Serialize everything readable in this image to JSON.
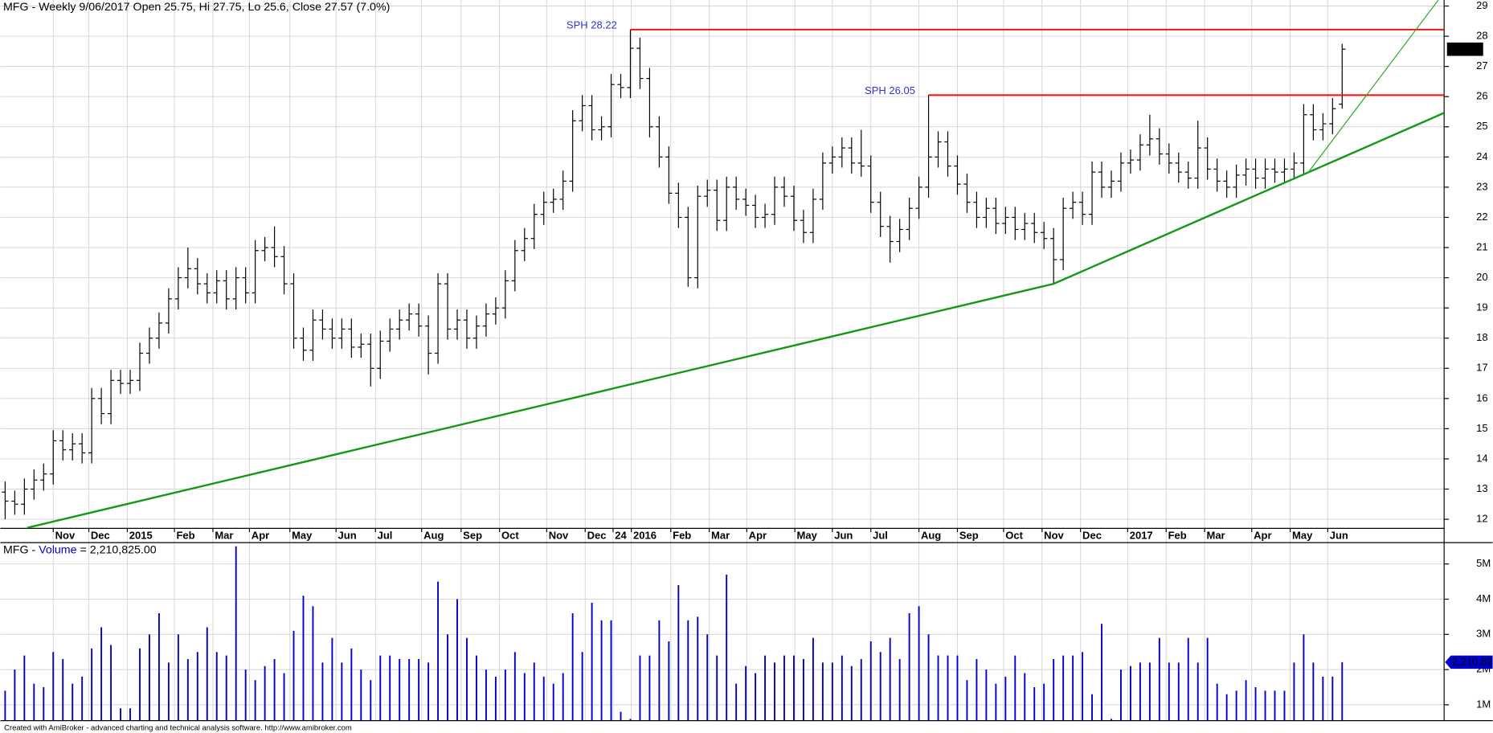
{
  "chart_data": [
    {
      "type": "ohlc",
      "title": "MFG - Weekly 9/06/2017 Open 25.75, Hi 27.75, Lo 25.6, Close 27.57 (7.0%)",
      "color": "#000000",
      "grid": true,
      "open": [
        12.9,
        12.6,
        12.5,
        13.0,
        13.3,
        13.5,
        14.6,
        14.3,
        14.5,
        14.2,
        16.0,
        15.5,
        16.6,
        16.5,
        16.6,
        17.5,
        18.0,
        18.5,
        19.3,
        20.0,
        20.3,
        19.8,
        19.5,
        19.9,
        19.3,
        20.0,
        19.5,
        20.9,
        21.0,
        20.7,
        19.8,
        18.0,
        17.6,
        18.6,
        18.3,
        18.0,
        18.3,
        17.7,
        17.8,
        17.0,
        17.9,
        18.3,
        18.6,
        18.8,
        18.4,
        17.5,
        19.8,
        18.3,
        18.6,
        18.0,
        18.4,
        18.8,
        19.0,
        19.9,
        20.9,
        21.3,
        22.1,
        22.5,
        22.6,
        23.2,
        25.2,
        25.7,
        24.9,
        25.0,
        26.4,
        26.3,
        27.6,
        26.6,
        25.0,
        24.0,
        22.8,
        22.0,
        20.0,
        22.7,
        22.9,
        21.9,
        23.0,
        22.6,
        22.4,
        22.0,
        22.1,
        23.0,
        22.7,
        21.9,
        21.5,
        22.6,
        23.8,
        24.0,
        24.3,
        23.8,
        23.7,
        22.5,
        21.7,
        21.2,
        21.6,
        22.3,
        23.0,
        24.0,
        24.5,
        23.7,
        23.1,
        22.5,
        22.0,
        22.3,
        21.8,
        22.0,
        21.6,
        21.8,
        21.5,
        21.3,
        20.6,
        22.3,
        22.5,
        22.1,
        23.5,
        23.0,
        23.2,
        23.8,
        23.9,
        24.4,
        24.6,
        24.1,
        23.8,
        23.5,
        23.3,
        24.3,
        23.6,
        23.2,
        23.0,
        23.4,
        23.6,
        23.3,
        23.6,
        23.5,
        23.6,
        23.8,
        25.4,
        24.9,
        25.1,
        25.75
      ],
      "high": [
        13.25,
        12.95,
        13.35,
        13.65,
        13.85,
        14.95,
        14.95,
        14.85,
        14.85,
        16.35,
        16.35,
        16.95,
        16.95,
        16.95,
        17.85,
        18.35,
        18.85,
        19.65,
        20.35,
        21.0,
        20.65,
        20.15,
        20.25,
        20.25,
        20.35,
        20.35,
        21.25,
        21.35,
        21.7,
        21.05,
        20.15,
        18.35,
        18.95,
        18.95,
        18.65,
        18.65,
        18.65,
        18.15,
        18.15,
        18.25,
        18.65,
        18.95,
        19.15,
        19.15,
        18.75,
        20.15,
        20.15,
        18.95,
        18.95,
        18.75,
        19.15,
        19.35,
        20.25,
        21.25,
        21.65,
        22.45,
        22.85,
        22.95,
        23.55,
        25.55,
        26.05,
        26.05,
        25.35,
        26.75,
        26.75,
        28.22,
        27.95,
        26.95,
        25.35,
        24.35,
        23.15,
        22.35,
        23.05,
        23.25,
        23.25,
        23.35,
        23.35,
        22.95,
        22.75,
        22.45,
        23.35,
        23.35,
        23.05,
        22.25,
        22.95,
        24.15,
        24.35,
        24.65,
        24.65,
        24.9,
        24.05,
        22.85,
        22.05,
        21.95,
        22.65,
        23.35,
        26.05,
        24.85,
        24.85,
        24.05,
        23.45,
        22.85,
        22.65,
        22.65,
        22.35,
        22.35,
        22.15,
        22.15,
        21.85,
        21.65,
        22.65,
        22.85,
        22.85,
        23.85,
        23.85,
        23.55,
        24.15,
        24.25,
        24.75,
        25.4,
        24.95,
        24.45,
        24.15,
        23.85,
        25.2,
        24.65,
        23.95,
        23.55,
        23.75,
        23.95,
        23.95,
        23.95,
        23.95,
        23.95,
        24.15,
        25.75,
        25.75,
        25.45,
        25.95,
        27.75
      ],
      "low": [
        12.0,
        12.15,
        12.15,
        12.65,
        12.95,
        13.15,
        13.95,
        13.95,
        13.85,
        13.85,
        15.15,
        15.15,
        16.15,
        16.15,
        16.25,
        17.15,
        17.65,
        18.15,
        18.95,
        19.65,
        19.45,
        19.15,
        19.15,
        18.95,
        18.95,
        19.15,
        19.15,
        20.55,
        20.35,
        19.45,
        17.65,
        17.25,
        17.25,
        17.95,
        17.65,
        17.65,
        17.35,
        17.35,
        16.4,
        16.65,
        17.55,
        17.95,
        18.25,
        18.05,
        16.8,
        17.15,
        17.95,
        17.95,
        17.65,
        17.65,
        18.05,
        18.45,
        18.65,
        19.55,
        20.55,
        20.95,
        21.75,
        22.15,
        22.25,
        22.85,
        24.85,
        24.55,
        24.55,
        24.65,
        25.95,
        25.95,
        26.25,
        24.65,
        23.65,
        22.45,
        21.65,
        19.7,
        19.65,
        22.35,
        21.55,
        21.55,
        22.25,
        22.05,
        21.65,
        21.65,
        21.75,
        22.35,
        21.55,
        21.15,
        21.15,
        22.25,
        23.45,
        23.65,
        23.45,
        23.35,
        22.15,
        21.35,
        20.5,
        20.85,
        21.25,
        21.95,
        22.65,
        23.65,
        23.35,
        22.75,
        22.15,
        21.65,
        21.65,
        21.45,
        21.45,
        21.25,
        21.25,
        21.15,
        20.95,
        19.8,
        20.25,
        21.95,
        21.75,
        21.75,
        22.65,
        22.65,
        22.85,
        23.45,
        23.55,
        24.05,
        23.75,
        23.45,
        23.15,
        22.95,
        22.95,
        23.25,
        22.85,
        22.65,
        22.65,
        23.05,
        22.95,
        22.95,
        23.15,
        23.15,
        23.25,
        23.45,
        24.55,
        24.55,
        24.75,
        25.6
      ],
      "close": [
        12.6,
        12.5,
        13.0,
        13.3,
        13.5,
        14.6,
        14.3,
        14.5,
        14.2,
        16.0,
        15.5,
        16.6,
        16.5,
        16.6,
        17.5,
        18.0,
        18.5,
        19.3,
        20.0,
        20.3,
        19.8,
        19.5,
        19.9,
        19.3,
        20.0,
        19.5,
        20.9,
        21.0,
        20.7,
        19.8,
        18.0,
        17.6,
        18.6,
        18.3,
        18.0,
        18.3,
        17.7,
        17.8,
        17.0,
        17.9,
        18.3,
        18.6,
        18.8,
        18.4,
        17.5,
        19.8,
        18.3,
        18.6,
        18.0,
        18.4,
        18.8,
        19.0,
        19.9,
        20.9,
        21.3,
        22.1,
        22.5,
        22.6,
        23.2,
        25.2,
        25.7,
        24.9,
        25.0,
        26.4,
        26.3,
        27.6,
        26.6,
        25.0,
        24.0,
        22.8,
        22.0,
        20.0,
        22.7,
        22.9,
        21.9,
        23.0,
        22.6,
        22.4,
        22.0,
        22.1,
        23.0,
        22.7,
        21.9,
        21.5,
        22.6,
        23.8,
        24.0,
        24.3,
        23.8,
        23.7,
        22.5,
        21.7,
        21.2,
        21.6,
        22.3,
        23.0,
        24.0,
        24.5,
        23.7,
        23.1,
        22.5,
        22.0,
        22.3,
        21.8,
        22.0,
        21.6,
        21.8,
        21.5,
        21.3,
        20.6,
        22.3,
        22.5,
        22.1,
        23.5,
        23.0,
        23.2,
        23.8,
        23.9,
        24.4,
        24.6,
        24.1,
        23.8,
        23.5,
        23.3,
        24.3,
        23.6,
        23.2,
        23.0,
        23.4,
        23.6,
        23.3,
        23.6,
        23.5,
        23.6,
        23.8,
        25.4,
        24.9,
        25.1,
        25.6,
        27.57
      ],
      "xlim": [
        -0.5,
        149.6
      ],
      "xticks": [
        {
          "value": 5.0,
          "label": "Nov"
        },
        {
          "value": 8.7,
          "label": "Dec"
        },
        {
          "value": 12.7,
          "label": "2015"
        },
        {
          "value": 17.6,
          "label": "Feb"
        },
        {
          "value": 21.6,
          "label": "Mar"
        },
        {
          "value": 25.4,
          "label": "Apr"
        },
        {
          "value": 29.6,
          "label": "May"
        },
        {
          "value": 34.4,
          "label": "Jun"
        },
        {
          "value": 38.5,
          "label": "Jul"
        },
        {
          "value": 43.3,
          "label": "Aug"
        },
        {
          "value": 47.4,
          "label": "Sep"
        },
        {
          "value": 51.4,
          "label": "Oct"
        },
        {
          "value": 56.3,
          "label": "Nov"
        },
        {
          "value": 60.3,
          "label": "Dec"
        },
        {
          "value": 63.2,
          "label": "24"
        },
        {
          "value": 65.1,
          "label": "2016"
        },
        {
          "value": 69.2,
          "label": "Feb"
        },
        {
          "value": 73.2,
          "label": "Mar"
        },
        {
          "value": 77.1,
          "label": "Apr"
        },
        {
          "value": 82.1,
          "label": "May"
        },
        {
          "value": 86.0,
          "label": "Jun"
        },
        {
          "value": 90.0,
          "label": "Jul"
        },
        {
          "value": 95.0,
          "label": "Aug"
        },
        {
          "value": 99.0,
          "label": "Sep"
        },
        {
          "value": 103.8,
          "label": "Oct"
        },
        {
          "value": 107.8,
          "label": "Nov"
        },
        {
          "value": 111.8,
          "label": "Dec"
        },
        {
          "value": 116.7,
          "label": "2017"
        },
        {
          "value": 120.7,
          "label": "Feb"
        },
        {
          "value": 124.7,
          "label": "Mar"
        },
        {
          "value": 129.6,
          "label": "Apr"
        },
        {
          "value": 133.6,
          "label": "May"
        },
        {
          "value": 137.5,
          "label": "Jun"
        }
      ],
      "ylim": [
        11.7,
        29.2
      ],
      "yticks": [
        12,
        13,
        14,
        15,
        16,
        17,
        18,
        19,
        20,
        21,
        22,
        23,
        24,
        25,
        26,
        27,
        28,
        29
      ],
      "levels": [
        {
          "label": "SPH 28.22",
          "value": 28.22,
          "start": 65,
          "color": "#ff0000"
        },
        {
          "label": "SPH 26.05",
          "value": 26.05,
          "start": 96,
          "color": "#ff0000"
        }
      ],
      "trendlines": [
        {
          "color": "#119911",
          "width": 2,
          "x": [
            2.3,
            109,
            149.6
          ],
          "y": [
            11.72,
            19.8,
            25.46
          ]
        },
        {
          "color": "#22aa22",
          "width": 1,
          "x": [
            135.5,
            149.0
          ],
          "y": [
            23.5,
            29.2
          ]
        }
      ]
    },
    {
      "type": "bar",
      "title": "MFG -",
      "name": "Volume",
      "readout": "= 2,210,825.00",
      "color": "#0000cc",
      "last_value_label": "2,210,825",
      "values": [
        1400000,
        2000000,
        2400000,
        1600000,
        1500000,
        2500000,
        2300000,
        1600000,
        1800000,
        2600000,
        3200000,
        2700000,
        900000,
        900000,
        2600000,
        3000000,
        3600000,
        2200000,
        3000000,
        2300000,
        2500000,
        3200000,
        2500000,
        2400000,
        5500000,
        2000000,
        1700000,
        2100000,
        2300000,
        1900000,
        3100000,
        4100000,
        3800000,
        2200000,
        2900000,
        2200000,
        2600000,
        2000000,
        1700000,
        2400000,
        2400000,
        2300000,
        2300000,
        2300000,
        2200000,
        4500000,
        3000000,
        4000000,
        2900000,
        2400000,
        2000000,
        1800000,
        2000000,
        2500000,
        1900000,
        2200000,
        1800000,
        1600000,
        1900000,
        3600000,
        2500000,
        3900000,
        3400000,
        3400000,
        800000,
        600000,
        2400000,
        2400000,
        3400000,
        2800000,
        4400000,
        3400000,
        3500000,
        3000000,
        2400000,
        4700000,
        1600000,
        2100000,
        1900000,
        2400000,
        2200000,
        2400000,
        2400000,
        2300000,
        2900000,
        2200000,
        2200000,
        2400000,
        2100000,
        2300000,
        2800000,
        2500000,
        2900000,
        2300000,
        3600000,
        3800000,
        3000000,
        2400000,
        2400000,
        2400000,
        1700000,
        2300000,
        2000000,
        1600000,
        1800000,
        2400000,
        1900000,
        1500000,
        1600000,
        2300000,
        2400000,
        2400000,
        2500000,
        1300000,
        3300000,
        600000,
        2000000,
        2100000,
        2200000,
        2200000,
        2900000,
        2200000,
        2200000,
        2900000,
        2200000,
        2900000,
        1600000,
        1300000,
        1400000,
        1700000,
        1500000,
        1400000,
        1400000,
        1400000,
        2200000,
        3000000,
        2200000,
        1800000,
        1800000,
        2210825
      ],
      "ylim": [
        550000,
        5580000
      ],
      "yticks": [
        {
          "value": 1000000,
          "label": "1M"
        },
        {
          "value": 2000000,
          "label": "2M"
        },
        {
          "value": 3000000,
          "label": "3M"
        },
        {
          "value": 4000000,
          "label": "4M"
        },
        {
          "value": 5000000,
          "label": "5M"
        }
      ]
    }
  ],
  "footer": "Created with AmiBroker - advanced charting and technical analysis software. http://www.amibroker.com"
}
